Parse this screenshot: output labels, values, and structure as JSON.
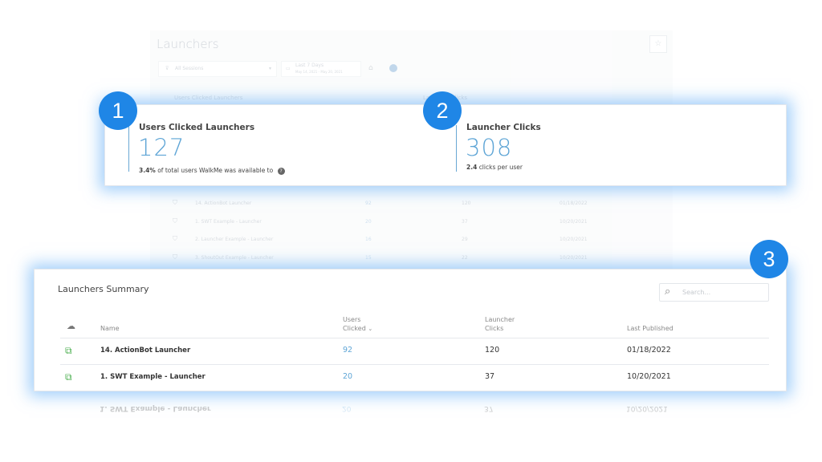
{
  "background_page": {
    "title": "Launchers",
    "filter": "All Sessions",
    "date_range": "Last 7 Days",
    "date_sub": "May 14, 2021 - May 20, 2021",
    "kpi_labels": [
      "Users Clicked Launchers",
      "Launcher Clicks"
    ],
    "rows": [
      {
        "name": "14. ActionBot Launcher",
        "users": "92",
        "clicks": "120",
        "date": "01/18/2022"
      },
      {
        "name": "1. SWT Example - Launcher",
        "users": "20",
        "clicks": "37",
        "date": "10/20/2021"
      },
      {
        "name": "2. Launcher Example - Launcher",
        "users": "16",
        "clicks": "29",
        "date": "10/20/2021"
      },
      {
        "name": "3. ShoutOut Example - Launcher",
        "users": "15",
        "clicks": "22",
        "date": "10/20/2021"
      }
    ]
  },
  "callouts": [
    "1",
    "2",
    "3"
  ],
  "kpis": [
    {
      "title": "Users Clicked Launchers",
      "value": "127",
      "sub_bold": "3.4%",
      "sub_text": "of total users WalkMe was available to"
    },
    {
      "title": "Launcher Clicks",
      "value": "308",
      "sub_bold": "2.4",
      "sub_text": "clicks per user"
    }
  ],
  "summary": {
    "title": "Launchers Summary",
    "search_placeholder": "Search...",
    "columns": {
      "name": "Name",
      "users_1": "Users",
      "users_2": "Clicked",
      "clicks_1": "Launcher",
      "clicks_2": "Clicks",
      "published": "Last Published"
    },
    "rows": [
      {
        "name": "14. ActionBot Launcher",
        "users": "92",
        "clicks": "120",
        "date": "01/18/2022"
      },
      {
        "name": "1. SWT Example - Launcher",
        "users": "20",
        "clicks": "37",
        "date": "10/20/2021"
      }
    ]
  },
  "colors": {
    "accent": "#1f86e6",
    "link": "#5ea5d6",
    "launcher_icon": "#4caf50"
  }
}
